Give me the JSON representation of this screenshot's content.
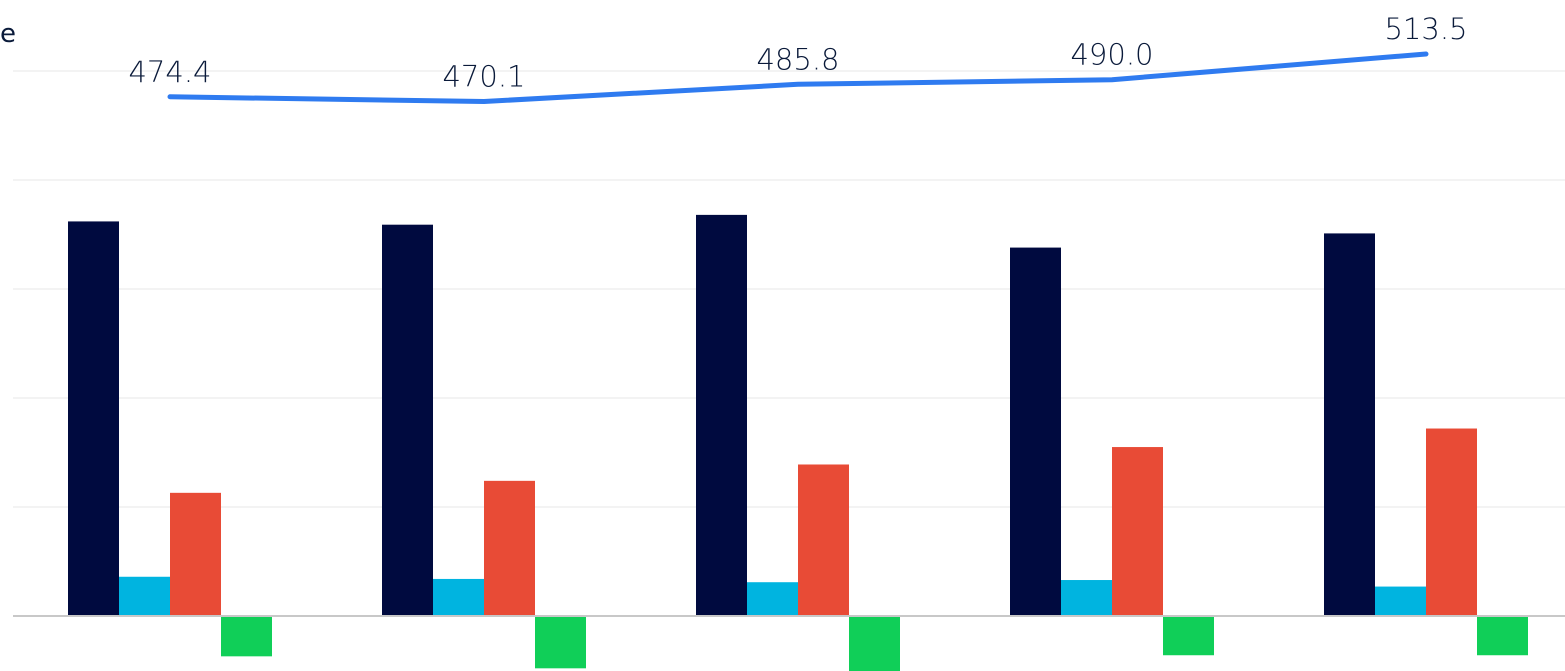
{
  "chart_data": {
    "type": "bar",
    "title": "",
    "xlabel": "",
    "ylabel": "e",
    "categories": [
      "",
      "",
      "",
      "",
      ""
    ],
    "ylim": [
      -50,
      500
    ],
    "grid": true,
    "legend": "none",
    "series": [
      {
        "type": "bar",
        "color": "#000a3f",
        "values": [
          362,
          359,
          368,
          338,
          351
        ]
      },
      {
        "type": "bar",
        "color": "#00b4e0",
        "values": [
          36,
          34,
          31,
          33,
          27
        ]
      },
      {
        "type": "bar",
        "color": "#e84b36",
        "values": [
          113,
          124,
          139,
          155,
          172
        ]
      },
      {
        "type": "bar",
        "color": "#10cf58",
        "values": [
          -37,
          -48,
          -51,
          -36,
          -36
        ]
      },
      {
        "type": "line",
        "axis": "secondary",
        "color": "#2f7bf0",
        "values": [
          474.4,
          470.1,
          485.8,
          490.0,
          513.5
        ],
        "labels": [
          "474.4",
          "470.1",
          "485.8",
          "490.0",
          "513.5"
        ]
      }
    ]
  }
}
